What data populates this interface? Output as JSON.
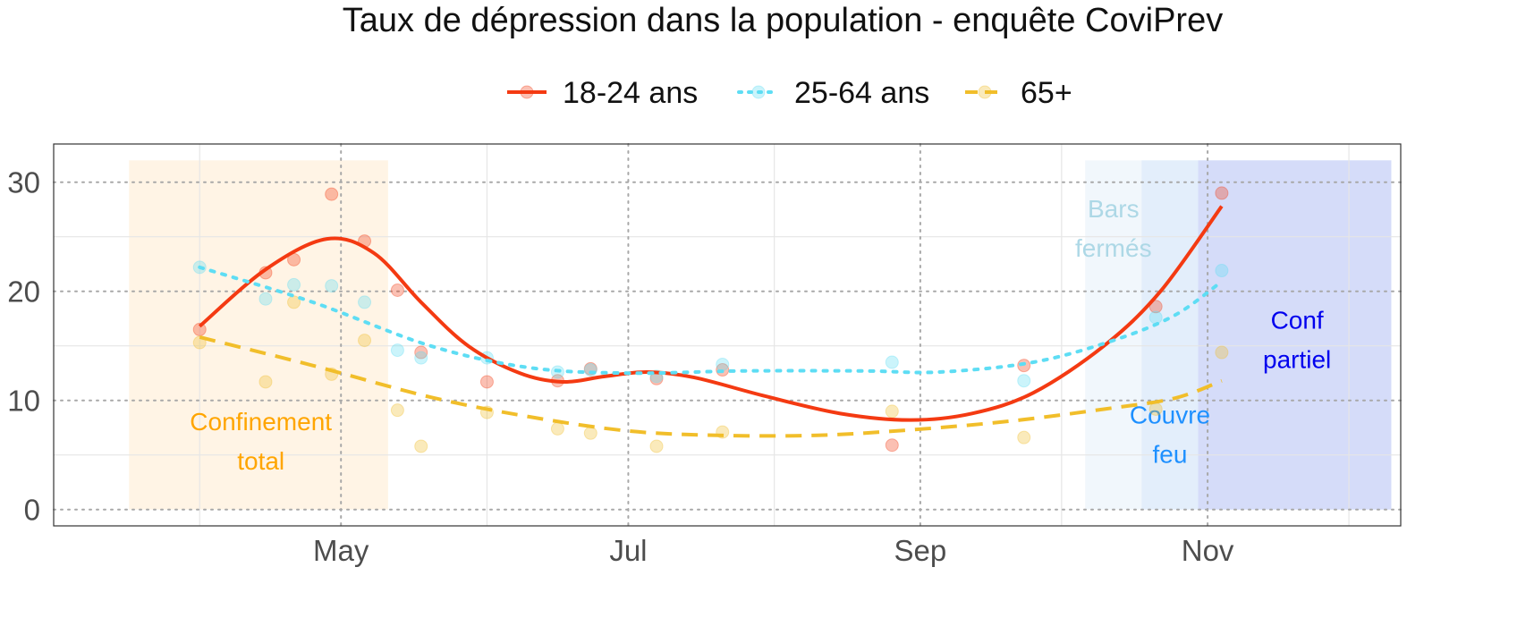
{
  "chart_data": {
    "type": "line",
    "title": "Taux de dépression dans la population - enquête CoviPrev",
    "legend": {
      "position": "top",
      "entries": [
        {
          "name": "18-24 ans",
          "color": "#F43A12",
          "dash": "solid"
        },
        {
          "name": "25-64 ans",
          "color": "#5EDDF4",
          "dash": "dotted"
        },
        {
          "name": "65+",
          "color": "#F1BE2A",
          "dash": "dashed"
        }
      ]
    },
    "x_axis": {
      "type": "date",
      "range": [
        "2020-03-01",
        "2020-12-12"
      ],
      "ticks": [
        {
          "date": "2020-05-01",
          "label": "May"
        },
        {
          "date": "2020-07-01",
          "label": "Jul"
        },
        {
          "date": "2020-09-01",
          "label": "Sep"
        },
        {
          "date": "2020-11-01",
          "label": "Nov"
        }
      ],
      "minor_ticks": [
        "2020-04-01",
        "2020-06-01",
        "2020-08-01",
        "2020-10-01",
        "2020-12-01"
      ]
    },
    "y_axis": {
      "range": [
        -1.5,
        33.5
      ],
      "ticks": [
        0,
        10,
        20,
        30
      ],
      "minor_ticks": [
        5,
        15,
        25
      ]
    },
    "grid": true,
    "periods": [
      {
        "label": "Confinement\ntotal",
        "start": "2020-03-17",
        "end": "2020-05-11",
        "color": "#FFA726",
        "opacity": 0.12,
        "label_color": "#FFA500",
        "label_date": "2020-04-14",
        "label_y": 6.3
      },
      {
        "label": "Bars\nfermés",
        "start": "2020-10-06",
        "end": "2020-12-10",
        "color": "#D6E8F6",
        "opacity": 0.35,
        "label_color": "#ADD8E6",
        "label_date": "2020-10-12",
        "label_y": 25.8
      },
      {
        "label": "Couvre\nfeu",
        "start": "2020-10-18",
        "end": "2020-12-10",
        "color": "#C5DCFA",
        "opacity": 0.3,
        "label_color": "#1E90FF",
        "label_date": "2020-10-24",
        "label_y": 6.9
      },
      {
        "label": "Conf\npartiel",
        "start": "2020-10-30",
        "end": "2020-12-10",
        "color": "#B9B9F7",
        "opacity": 0.35,
        "label_color": "#0000EE",
        "label_date": "2020-11-20",
        "label_y": 15.6
      }
    ],
    "series": [
      {
        "name": "18-24 ans",
        "color": "#F43A12",
        "dash": "solid",
        "points": [
          {
            "x": "2020-04-01",
            "y": 16.5
          },
          {
            "x": "2020-04-15",
            "y": 21.7
          },
          {
            "x": "2020-04-21",
            "y": 22.9
          },
          {
            "x": "2020-04-29",
            "y": 28.9
          },
          {
            "x": "2020-05-06",
            "y": 24.6
          },
          {
            "x": "2020-05-13",
            "y": 20.1
          },
          {
            "x": "2020-05-18",
            "y": 14.4
          },
          {
            "x": "2020-06-01",
            "y": 11.7
          },
          {
            "x": "2020-06-16",
            "y": 11.8
          },
          {
            "x": "2020-06-23",
            "y": 12.9
          },
          {
            "x": "2020-07-07",
            "y": 12.0
          },
          {
            "x": "2020-07-21",
            "y": 12.8
          },
          {
            "x": "2020-08-26",
            "y": 5.9
          },
          {
            "x": "2020-09-23",
            "y": 13.2
          },
          {
            "x": "2020-10-21",
            "y": 18.6
          },
          {
            "x": "2020-11-04",
            "y": 29.0
          }
        ],
        "trend": [
          {
            "x": "2020-04-01",
            "y": 16.8
          },
          {
            "x": "2020-04-15",
            "y": 22.0
          },
          {
            "x": "2020-04-28",
            "y": 24.8
          },
          {
            "x": "2020-05-08",
            "y": 23.5
          },
          {
            "x": "2020-05-18",
            "y": 19.0
          },
          {
            "x": "2020-05-28",
            "y": 15.0
          },
          {
            "x": "2020-06-08",
            "y": 12.5
          },
          {
            "x": "2020-06-17",
            "y": 11.7
          },
          {
            "x": "2020-06-26",
            "y": 12.2
          },
          {
            "x": "2020-07-05",
            "y": 12.6
          },
          {
            "x": "2020-07-15",
            "y": 12.1
          },
          {
            "x": "2020-07-30",
            "y": 10.4
          },
          {
            "x": "2020-08-15",
            "y": 8.8
          },
          {
            "x": "2020-08-30",
            "y": 8.2
          },
          {
            "x": "2020-09-12",
            "y": 8.8
          },
          {
            "x": "2020-09-25",
            "y": 10.7
          },
          {
            "x": "2020-10-10",
            "y": 15.0
          },
          {
            "x": "2020-10-22",
            "y": 20.0
          },
          {
            "x": "2020-11-04",
            "y": 27.8
          }
        ]
      },
      {
        "name": "25-64 ans",
        "color": "#5EDDF4",
        "dash": "dotted",
        "points": [
          {
            "x": "2020-04-01",
            "y": 22.2
          },
          {
            "x": "2020-04-15",
            "y": 19.3
          },
          {
            "x": "2020-04-21",
            "y": 20.6
          },
          {
            "x": "2020-04-29",
            "y": 20.5
          },
          {
            "x": "2020-05-06",
            "y": 19.0
          },
          {
            "x": "2020-05-13",
            "y": 14.6
          },
          {
            "x": "2020-05-18",
            "y": 13.9
          },
          {
            "x": "2020-06-01",
            "y": 13.9
          },
          {
            "x": "2020-06-16",
            "y": 12.6
          },
          {
            "x": "2020-06-23",
            "y": 12.8
          },
          {
            "x": "2020-07-07",
            "y": 12.2
          },
          {
            "x": "2020-07-21",
            "y": 13.3
          },
          {
            "x": "2020-08-26",
            "y": 13.5
          },
          {
            "x": "2020-09-23",
            "y": 11.8
          },
          {
            "x": "2020-10-21",
            "y": 17.6
          },
          {
            "x": "2020-11-04",
            "y": 21.9
          }
        ],
        "trend": [
          {
            "x": "2020-04-01",
            "y": 22.2
          },
          {
            "x": "2020-04-25",
            "y": 19.0
          },
          {
            "x": "2020-05-20",
            "y": 15.0
          },
          {
            "x": "2020-06-10",
            "y": 13.0
          },
          {
            "x": "2020-07-01",
            "y": 12.5
          },
          {
            "x": "2020-07-25",
            "y": 12.7
          },
          {
            "x": "2020-08-20",
            "y": 12.7
          },
          {
            "x": "2020-09-05",
            "y": 12.6
          },
          {
            "x": "2020-09-25",
            "y": 13.5
          },
          {
            "x": "2020-10-12",
            "y": 15.5
          },
          {
            "x": "2020-10-25",
            "y": 17.8
          },
          {
            "x": "2020-11-04",
            "y": 20.9
          }
        ]
      },
      {
        "name": "65+",
        "color": "#F1BE2A",
        "dash": "dashed",
        "points": [
          {
            "x": "2020-04-01",
            "y": 15.3
          },
          {
            "x": "2020-04-15",
            "y": 11.7
          },
          {
            "x": "2020-04-21",
            "y": 19.0
          },
          {
            "x": "2020-04-29",
            "y": 12.4
          },
          {
            "x": "2020-05-06",
            "y": 15.5
          },
          {
            "x": "2020-05-13",
            "y": 9.1
          },
          {
            "x": "2020-05-18",
            "y": 5.8
          },
          {
            "x": "2020-06-01",
            "y": 8.9
          },
          {
            "x": "2020-06-16",
            "y": 7.4
          },
          {
            "x": "2020-06-23",
            "y": 7.0
          },
          {
            "x": "2020-07-07",
            "y": 5.8
          },
          {
            "x": "2020-07-21",
            "y": 7.1
          },
          {
            "x": "2020-08-26",
            "y": 9.0
          },
          {
            "x": "2020-09-23",
            "y": 6.6
          },
          {
            "x": "2020-10-21",
            "y": 9.2
          },
          {
            "x": "2020-11-04",
            "y": 14.4
          }
        ],
        "trend": [
          {
            "x": "2020-04-01",
            "y": 15.8
          },
          {
            "x": "2020-04-25",
            "y": 13.2
          },
          {
            "x": "2020-05-20",
            "y": 10.3
          },
          {
            "x": "2020-06-10",
            "y": 8.5
          },
          {
            "x": "2020-07-01",
            "y": 7.2
          },
          {
            "x": "2020-07-20",
            "y": 6.8
          },
          {
            "x": "2020-08-10",
            "y": 6.8
          },
          {
            "x": "2020-08-30",
            "y": 7.3
          },
          {
            "x": "2020-09-20",
            "y": 8.1
          },
          {
            "x": "2020-10-10",
            "y": 9.2
          },
          {
            "x": "2020-10-25",
            "y": 10.2
          },
          {
            "x": "2020-11-04",
            "y": 11.8
          }
        ]
      }
    ]
  }
}
